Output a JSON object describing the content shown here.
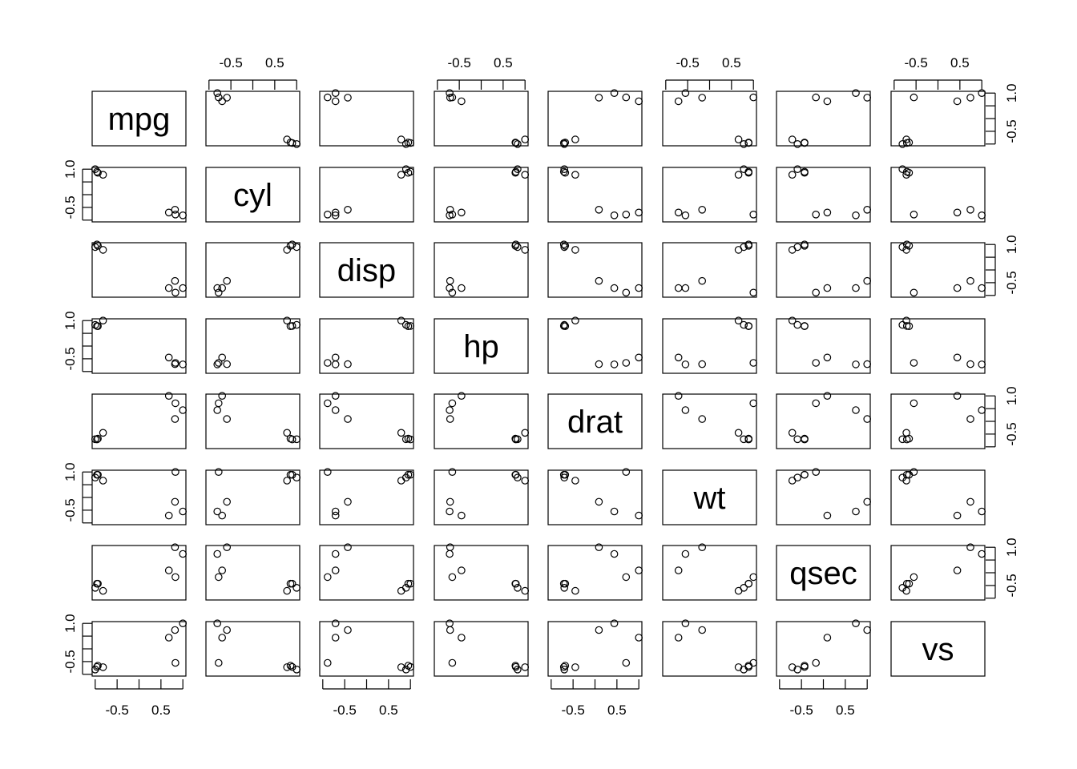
{
  "chart_data": {
    "type": "scatter",
    "subtype": "scatterplot-matrix",
    "variables": [
      "mpg",
      "cyl",
      "disp",
      "hp",
      "drat",
      "wt",
      "qsec",
      "vs"
    ],
    "axis_range": [
      -1,
      1
    ],
    "tick_values": [
      -1,
      -0.5,
      0,
      0.5,
      1
    ],
    "tick_labels": [
      "-0.5",
      "0.5",
      "1.0"
    ],
    "tick_label_values": [
      -0.5,
      0.5,
      1.0
    ],
    "grid": false,
    "title": "",
    "values": {
      "mpg": [
        -0.94,
        -1.0,
        -0.96,
        -0.82,
        0.68,
        0.83,
        0.82,
        1.0
      ],
      "cyl": [
        0.86,
        1.0,
        0.9,
        0.78,
        -0.7,
        -0.78,
        -0.59,
        -0.81
      ],
      "disp": [
        0.95,
        0.9,
        1.0,
        0.79,
        -0.71,
        -0.89,
        -0.43,
        -0.71
      ],
      "hp": [
        0.78,
        0.83,
        0.79,
        1.0,
        -0.45,
        -0.66,
        -0.71,
        -0.72
      ],
      "drat": [
        -0.68,
        -0.7,
        -0.71,
        -0.45,
        1.0,
        0.71,
        0.09,
        0.44
      ],
      "wt": [
        0.89,
        0.78,
        0.89,
        0.66,
        -0.71,
        1.0,
        -0.17,
        -0.55
      ],
      "qsec": [
        -0.43,
        -0.59,
        -0.43,
        -0.71,
        0.09,
        -0.17,
        1.0,
        0.74
      ],
      "vs": [
        -0.66,
        -0.81,
        -0.71,
        -0.72,
        0.44,
        -0.55,
        0.74,
        1.0
      ]
    }
  }
}
